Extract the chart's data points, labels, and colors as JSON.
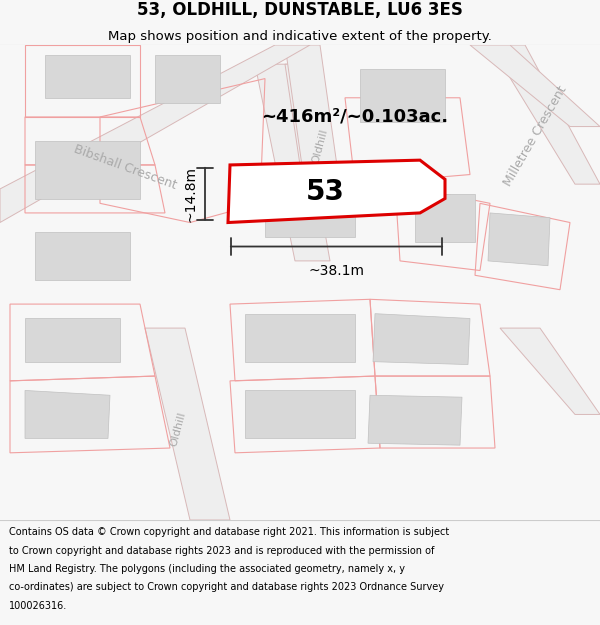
{
  "title": "53, OLDHILL, DUNSTABLE, LU6 3ES",
  "subtitle": "Map shows position and indicative extent of the property.",
  "footer_lines": [
    "Contains OS data © Crown copyright and database right 2021. This information is subject",
    "to Crown copyright and database rights 2023 and is reproduced with the permission of",
    "HM Land Registry. The polygons (including the associated geometry, namely x, y",
    "co-ordinates) are subject to Crown copyright and database rights 2023 Ordnance Survey",
    "100026316."
  ],
  "area_text": "~416m²/~0.103ac.",
  "width_text": "~38.1m",
  "height_text": "~14.8m",
  "number_text": "53",
  "bg_color": "#f7f7f7",
  "map_bg": "#ffffff",
  "road_fill": "#eeeeee",
  "road_edge": "#d8b8b8",
  "bld_fill": "#d8d8d8",
  "bld_edge": "#c0c0c0",
  "boundary_color": "#f0a0a0",
  "highlight_color": "#dd0000",
  "title_fontsize": 12,
  "subtitle_fontsize": 9.5,
  "footer_fontsize": 7.0,
  "label_color": "#aaaaaa",
  "dim_color": "#333333"
}
